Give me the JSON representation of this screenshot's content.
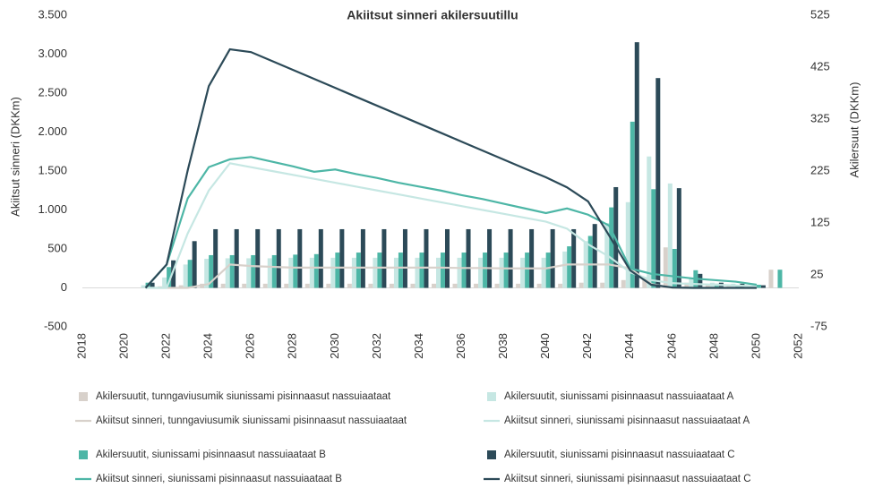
{
  "chart_data": {
    "type": "combo",
    "title": "Akiitsut sinneri akilersuutillu",
    "y_label": "Akiitsut sinneri (DKKm)",
    "y2_label": "Akilersuut (DKKm)",
    "x": [
      2021,
      2022,
      2023,
      2024,
      2025,
      2026,
      2027,
      2028,
      2029,
      2030,
      2031,
      2032,
      2033,
      2034,
      2035,
      2036,
      2037,
      2038,
      2039,
      2040,
      2041,
      2042,
      2043,
      2044,
      2045,
      2046,
      2047,
      2048,
      2049,
      2050,
      2051
    ],
    "xlim": [
      2018,
      2052
    ],
    "xticks": [
      2018,
      2020,
      2022,
      2024,
      2026,
      2028,
      2030,
      2032,
      2034,
      2036,
      2038,
      2040,
      2042,
      2044,
      2046,
      2048,
      2050,
      2052
    ],
    "ylim": [
      -500,
      3500
    ],
    "yticks": [
      -500,
      0,
      500,
      {
        "value": 1000,
        "label": "1.000"
      },
      {
        "value": 1500,
        "label": "1.500"
      },
      {
        "value": 2000,
        "label": "2.000"
      },
      {
        "value": 2500,
        "label": "2.500"
      },
      {
        "value": 3000,
        "label": "3.000"
      },
      {
        "value": 3500,
        "label": "3.500"
      }
    ],
    "y2lim": [
      -75,
      525
    ],
    "y2ticks": [
      -75,
      25,
      125,
      225,
      325,
      425,
      525
    ],
    "series": [
      {
        "name": "Akilersuutit, tunngaviusumik siunissami pisinnaasut nassuiaataat",
        "type": "bar",
        "axis": "y2",
        "color": "#d8d1cb",
        "values": [
          0,
          3,
          5,
          8,
          8,
          8,
          8,
          8,
          8,
          8,
          8,
          8,
          8,
          8,
          8,
          8,
          8,
          8,
          8,
          8,
          8,
          10,
          10,
          15,
          20,
          78,
          10,
          5,
          5,
          3,
          35
        ]
      },
      {
        "name": "Akilersuutit, siunissami pisinnaasut nassuiaataat A",
        "type": "bar",
        "axis": "y2",
        "color": "#c6e7e3",
        "values": [
          5,
          20,
          45,
          56,
          57,
          57,
          57,
          58,
          58,
          58,
          58,
          58,
          58,
          58,
          58,
          58,
          58,
          58,
          58,
          58,
          70,
          90,
          125,
          165,
          253,
          201,
          20,
          10,
          8,
          5,
          0
        ]
      },
      {
        "name": "Akilersuutit, siunissami pisinnaasut nassuiaataat B",
        "type": "bar",
        "axis": "y2",
        "color": "#4db6a6",
        "values": [
          10,
          40,
          54,
          63,
          63,
          63,
          63,
          64,
          65,
          68,
          68,
          68,
          68,
          68,
          68,
          68,
          68,
          68,
          68,
          68,
          80,
          100,
          155,
          320,
          190,
          75,
          34,
          8,
          6,
          6,
          35
        ]
      },
      {
        "name": "Akilersuutit, siunissami pisinnaasut nassuiaataat C",
        "type": "bar",
        "axis": "y2",
        "color": "#2c4a58",
        "values": [
          10,
          53,
          90,
          113,
          113,
          113,
          113,
          113,
          113,
          113,
          113,
          113,
          113,
          113,
          113,
          113,
          113,
          113,
          113,
          113,
          113,
          123,
          194,
          473,
          404,
          192,
          27,
          10,
          8,
          5,
          0
        ]
      },
      {
        "name": "Akiitsut sinneri, tunngaviusumik siunissami pisinnaasut nassuiaataat",
        "type": "line",
        "color": "#d8d1cb",
        "values": [
          0,
          0,
          0,
          50,
          300,
          280,
          270,
          260,
          260,
          260,
          260,
          260,
          260,
          260,
          260,
          255,
          255,
          250,
          250,
          250,
          300,
          300,
          300,
          250,
          50,
          0,
          0,
          0,
          0,
          0,
          null
        ]
      },
      {
        "name": "Akiitsut sinneri, siunissami pisinnaasut nassuiaataat A",
        "type": "line",
        "color": "#c6e7e3",
        "values": [
          0,
          0,
          700,
          1250,
          1600,
          1550,
          1500,
          1450,
          1400,
          1350,
          1300,
          1250,
          1200,
          1150,
          1100,
          1050,
          1000,
          950,
          900,
          850,
          760,
          560,
          400,
          200,
          100,
          60,
          50,
          40,
          30,
          20,
          null
        ]
      },
      {
        "name": "Akiitsut sinneri, siunissami pisinnaasut nassuiaataat B",
        "type": "line",
        "color": "#4db6a6",
        "values": [
          0,
          300,
          1150,
          1550,
          1650,
          1680,
          1620,
          1560,
          1490,
          1520,
          1460,
          1410,
          1350,
          1300,
          1250,
          1190,
          1140,
          1080,
          1020,
          960,
          1020,
          940,
          800,
          250,
          180,
          150,
          120,
          100,
          80,
          40,
          null
        ]
      },
      {
        "name": "Akiitsut sinneri, siunissami pisinnaasut nassuiaataat C",
        "type": "line",
        "color": "#2c4a58",
        "values": [
          0,
          300,
          1510,
          2590,
          3063,
          3027,
          2912,
          2797,
          2682,
          2567,
          2452,
          2337,
          2222,
          2107,
          1992,
          1877,
          1762,
          1647,
          1532,
          1419,
          1290,
          1110,
          672,
          224,
          40,
          5,
          0,
          0,
          0,
          0,
          null
        ]
      }
    ]
  }
}
